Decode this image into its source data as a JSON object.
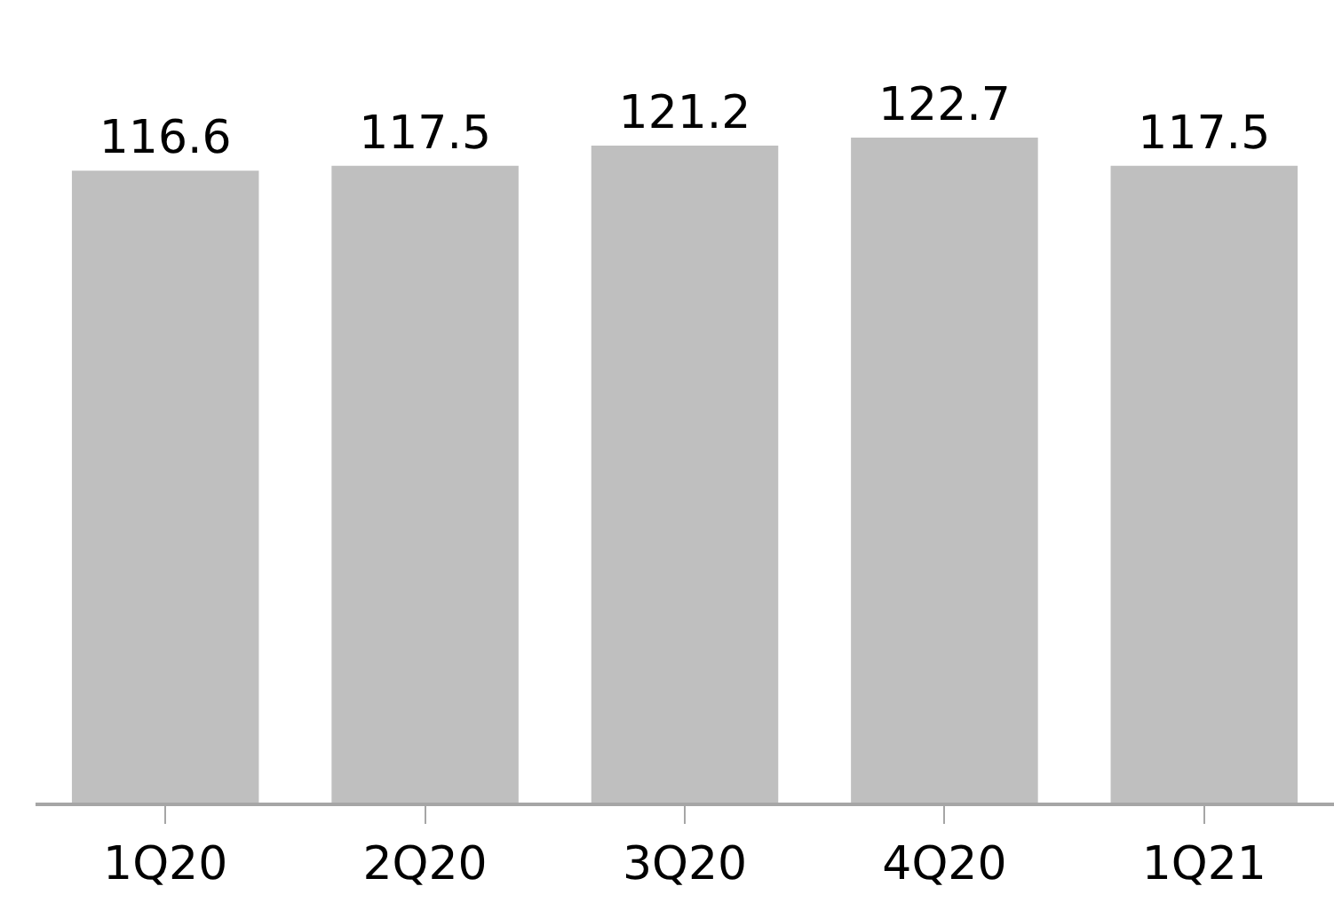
{
  "chart_data": {
    "type": "bar",
    "categories": [
      "1Q20",
      "2Q20",
      "3Q20",
      "4Q20",
      "1Q21"
    ],
    "values": [
      116.6,
      117.5,
      121.2,
      122.7,
      117.5
    ],
    "color": "#bfbfbf",
    "data_labels": true
  }
}
